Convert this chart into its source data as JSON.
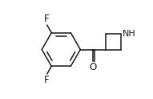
{
  "background": "#ffffff",
  "line_color": "#1a1a1a",
  "line_width": 1.1,
  "figsize": [
    1.91,
    1.23
  ],
  "dpi": 100,
  "F_top_label": "F",
  "F_bottom_label": "F",
  "NH_label": "NH",
  "O_label": "O",
  "font_size": 8.5,
  "nh_font_size": 8.0
}
